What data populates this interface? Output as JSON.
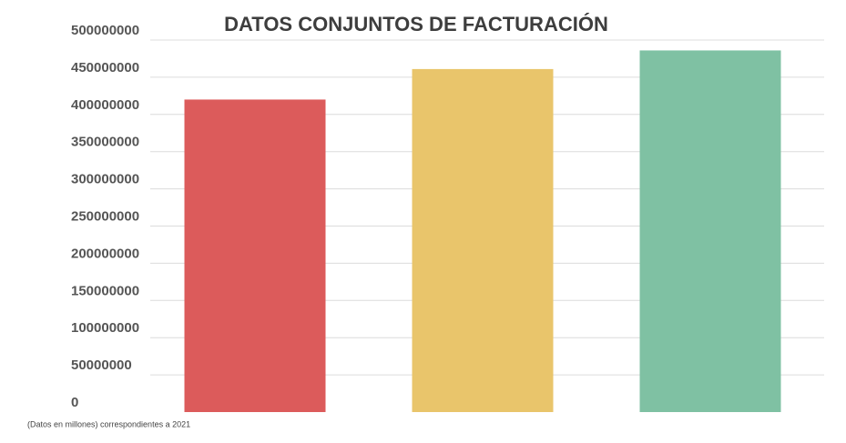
{
  "chart_data": {
    "type": "bar",
    "title": "DATOS CONJUNTOS DE FACTURACIÓN",
    "note": "(Datos en millones)  correspondientes a 2021",
    "categories": [
      null,
      null,
      null
    ],
    "values": [
      420000000,
      461000000,
      486000000
    ],
    "colors": [
      "#dc5b5b",
      "#e9c56b",
      "#7fc1a3"
    ],
    "ylim": [
      0,
      500000000
    ],
    "yticks": [
      0,
      50000000,
      100000000,
      150000000,
      200000000,
      250000000,
      300000000,
      350000000,
      400000000,
      450000000,
      500000000
    ],
    "grid": true
  }
}
